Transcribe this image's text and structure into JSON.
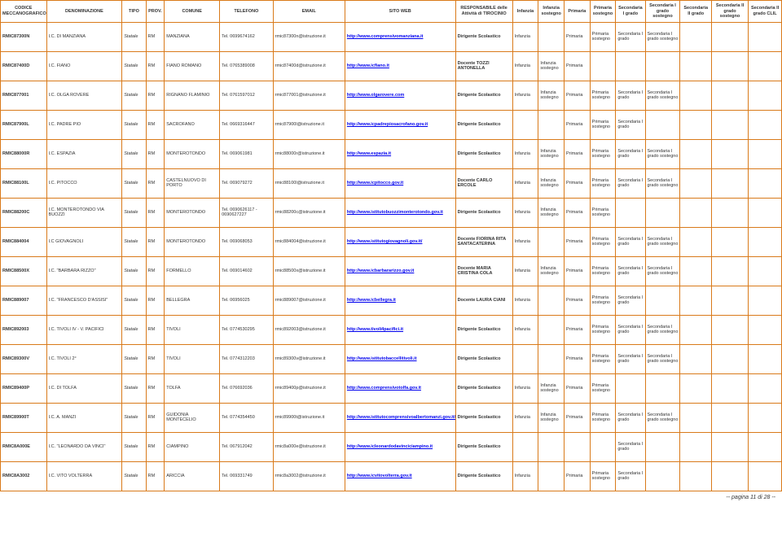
{
  "columns": [
    "CODICE MECCANOGRAFICO",
    "DENOMINAZIONE",
    "TIPO",
    "PROV.",
    "COMUNE",
    "TELEFONO",
    "EMAIL",
    "SITO WEB",
    "RESPONSABILE delle Attività di TIROCINIO",
    "Infanzia",
    "Infanzia sostegno",
    "Primaria",
    "Primaria sostegno",
    "Secondaria I grado",
    "Secondaria I grado sostegno",
    "Secondaria II grado",
    "Secondaria II grado sostegno",
    "Secondaria II grado CLIL"
  ],
  "rows": [
    {
      "code": "RMIC87300N",
      "den": "I.C. DI MANZIANA",
      "tipo": "Statale",
      "prov": "RM",
      "comune": "MANZIANA",
      "tel": "Tel. 0699674162",
      "email": "rmic87300n@istruzione.it",
      "url": "http://www.comprensivomanziana.it",
      "resp": "Dirigente Scolastico",
      "inf": "Infanzia",
      "infs": "",
      "pri": "Primaria",
      "pris": "Primaria sostegno",
      "s1": "Secondaria I grado",
      "s1s": "Secondaria I grado sostegno",
      "s2": "",
      "s2s": "",
      "clil": ""
    },
    {
      "code": "RMIC87400D",
      "den": "I.C. FIANO",
      "tipo": "Statale",
      "prov": "RM",
      "comune": "FIANO ROMANO",
      "tel": "Tel. 0765389008",
      "email": "rmic87400d@istruzione.it",
      "url": "http://www.icfiano.it",
      "resp": "Docente TOZZI ANTONELLA",
      "inf": "Infanzia",
      "infs": "Infanzia sostegno",
      "pri": "Primaria",
      "pris": "",
      "s1": "",
      "s1s": "",
      "s2": "",
      "s2s": "",
      "clil": ""
    },
    {
      "code": "RMIC877001",
      "den": "I.C. OLGA ROVERE",
      "tipo": "Statale",
      "prov": "RM",
      "comune": "RIGNANO FLAMINIO",
      "tel": "Tel. 0761597012",
      "email": "rmic877001@istruzione.it",
      "url": "http://www.olgarovere.com",
      "resp": "Dirigente Scolastico",
      "inf": "Infanzia",
      "infs": "Infanzia sostegno",
      "pri": "Primaria",
      "pris": "Primaria sostegno",
      "s1": "Secondaria I grado",
      "s1s": "Secondaria I grado sostegno",
      "s2": "",
      "s2s": "",
      "clil": ""
    },
    {
      "code": "RMIC87900L",
      "den": "I.C. PADRE PIO",
      "tipo": "Statale",
      "prov": "RM",
      "comune": "SACROFANO",
      "tel": "Tel. 0669316447",
      "email": "rmic87900l@istruzione.it",
      "url": "http://www.icpadrepiosacrofano.gov.it",
      "resp": "Dirigente Scolastico",
      "inf": "",
      "infs": "",
      "pri": "Primaria",
      "pris": "Primaria sostegno",
      "s1": "Secondaria I grado",
      "s1s": "",
      "s2": "",
      "s2s": "",
      "clil": ""
    },
    {
      "code": "RMIC88000R",
      "den": "I.C. ESPAZIA",
      "tipo": "Statale",
      "prov": "RM",
      "comune": "MONTEROTONDO",
      "tel": "Tel. 069061981",
      "email": "rmic88000r@istruzione.it",
      "url": "http://www.espazia.it",
      "resp": "Dirigente Scolastico",
      "inf": "Infanzia",
      "infs": "Infanzia sostegno",
      "pri": "Primaria",
      "pris": "Primaria sostegno",
      "s1": "Secondaria I grado",
      "s1s": "Secondaria I grado sostegno",
      "s2": "",
      "s2s": "",
      "clil": ""
    },
    {
      "code": "RMIC88100L",
      "den": "I.C. PITOCCO",
      "tipo": "Statale",
      "prov": "RM",
      "comune": "CASTELNUOVO DI PORTO",
      "tel": "Tel. 069079272",
      "email": "rmic88100l@istruzione.it",
      "url": "http://www.icpitocco.gov.it",
      "resp": "Docente CARLO ERCOLE",
      "inf": "Infanzia",
      "infs": "Infanzia sostegno",
      "pri": "Primaria",
      "pris": "Primaria sostegno",
      "s1": "Secondaria I grado",
      "s1s": "Secondaria I grado sostegno",
      "s2": "",
      "s2s": "",
      "clil": ""
    },
    {
      "code": "RMIC88200C",
      "den": "I.C. MONTEROTONDO VIA BUOZZI",
      "tipo": "Statale",
      "prov": "RM",
      "comune": "MONTEROTONDO",
      "tel": "Tel. 0690626117 - 0690627227",
      "email": "rmic88200c@istruzione.it",
      "url": "http://www.istitutobuozzimonterotondo.gov.it",
      "resp": "Dirigente Scolastico",
      "inf": "Infanzia",
      "infs": "Infanzia sostegno",
      "pri": "Primaria",
      "pris": "Primaria sostegno",
      "s1": "",
      "s1s": "",
      "s2": "",
      "s2s": "",
      "clil": ""
    },
    {
      "code": "RMIC884004",
      "den": "I.C GIOVAGNOLI",
      "tipo": "Statale",
      "prov": "RM",
      "comune": "MONTEROTONDO",
      "tel": "Tel. 069068053",
      "email": "rmic884004@istruzione.it",
      "url": "http://www.istitutogiovagnoli.gov.it/",
      "resp": "Docente FIORINA RITA SANTACATERINA",
      "inf": "Infanzia",
      "infs": "",
      "pri": "Primaria",
      "pris": "Primaria sostegno",
      "s1": "Secondaria I grado",
      "s1s": "Secondaria I grado sostegno",
      "s2": "",
      "s2s": "",
      "clil": ""
    },
    {
      "code": "RMIC88500X",
      "den": "I.C. \"BARBARA RIZZO\"",
      "tipo": "Statale",
      "prov": "RM",
      "comune": "FORMELLO",
      "tel": "Tel. 069014602",
      "email": "rmic88500x@istruzione.it",
      "url": "http://www.icbarbararizzo.gov.it",
      "resp": "Docente MARIA CRISTINA COLA",
      "inf": "Infanzia",
      "infs": "Infanzia sostegno",
      "pri": "Primaria",
      "pris": "Primaria sostegno",
      "s1": "Secondaria I grado",
      "s1s": "Secondaria I grado sostegno",
      "s2": "",
      "s2s": "",
      "clil": ""
    },
    {
      "code": "RMIC889007",
      "den": "I.C. \"FRANCESCO D'ASSISI\"",
      "tipo": "Statale",
      "prov": "RM",
      "comune": "BELLEGRA",
      "tel": "Tel. 06956025",
      "email": "rmic889007@istruzione.it",
      "url": "http://www.icbellegra.it",
      "resp": "Docente LAURA CIANI",
      "inf": "Infanzia",
      "infs": "",
      "pri": "Primaria",
      "pris": "Primaria sostegno",
      "s1": "Secondaria I grado",
      "s1s": "",
      "s2": "",
      "s2s": "",
      "clil": ""
    },
    {
      "code": "RMIC892003",
      "den": "I.C. TIVOLI IV - V. PACIFICI",
      "tipo": "Statale",
      "prov": "RM",
      "comune": "TIVOLI",
      "tel": "Tel. 0774530295",
      "email": "rmic892003@istruzione.it",
      "url": "http://www.tivoli4pacifici.it",
      "resp": "Dirigente Scolastico",
      "inf": "Infanzia",
      "infs": "",
      "pri": "Primaria",
      "pris": "Primaria sostegno",
      "s1": "Secondaria I grado",
      "s1s": "Secondaria I grado sostegno",
      "s2": "",
      "s2s": "",
      "clil": ""
    },
    {
      "code": "RMIC89300V",
      "den": "I.C. TIVOLI 2°",
      "tipo": "Statale",
      "prov": "RM",
      "comune": "TIVOLI",
      "tel": "Tel. 0774312203",
      "email": "rmic89300v@istruzione.it",
      "url": "http://www.istitutobaccellitivoli.it",
      "resp": "Dirigente Scolastico",
      "inf": "",
      "infs": "",
      "pri": "Primaria",
      "pris": "Primaria sostegno",
      "s1": "Secondaria I grado",
      "s1s": "Secondaria I grado sostegno",
      "s2": "",
      "s2s": "",
      "clil": ""
    },
    {
      "code": "RMIC89400P",
      "den": "I.C. DI TOLFA",
      "tipo": "Statale",
      "prov": "RM",
      "comune": "TOLFA",
      "tel": "Tel. 076692036",
      "email": "rmic89400p@istruzione.it",
      "url": "http://www.comprensivotolfa.gov.it",
      "resp": "Dirigente Scolastico",
      "inf": "Infanzia",
      "infs": "Infanzia sostegno",
      "pri": "Primaria",
      "pris": "Primaria sostegno",
      "s1": "",
      "s1s": "",
      "s2": "",
      "s2s": "",
      "clil": ""
    },
    {
      "code": "RMIC89900T",
      "den": "I.C. A. MANZI",
      "tipo": "Statale",
      "prov": "RM",
      "comune": "GUIDONIA MONTECELIO",
      "tel": "Tel. 0774354450",
      "email": "rmic89900t@istruzione.it",
      "url": "http://www.istitutocomprensivoalbertomanzi.gov.it/",
      "resp": "Dirigente Scolastico",
      "inf": "Infanzia",
      "infs": "Infanzia sostegno",
      "pri": "Primaria",
      "pris": "Primaria sostegno",
      "s1": "Secondaria I grado",
      "s1s": "Secondaria I grado sostegno",
      "s2": "",
      "s2s": "",
      "clil": ""
    },
    {
      "code": "RMIC8A000E",
      "den": "I.C. \"LEONARDO DA VINCI\"",
      "tipo": "Statale",
      "prov": "RM",
      "comune": "CIAMPINO",
      "tel": "Tel. 067912042",
      "email": "rmic8a000e@istruzione.it",
      "url": "http://www.icleonardodavinciciampino.it",
      "resp": "Dirigente Scolastico",
      "inf": "",
      "infs": "",
      "pri": "",
      "pris": "",
      "s1": "Secondaria I grado",
      "s1s": "",
      "s2": "",
      "s2s": "",
      "clil": ""
    },
    {
      "code": "RMIC8A3002",
      "den": "I.C. VITO VOLTERRA",
      "tipo": "Statale",
      "prov": "RM",
      "comune": "ARICCIA",
      "tel": "Tel. 069331749",
      "email": "rmic8a3002@istruzione.it",
      "url": "http://www.icvitovolterra.gov.it",
      "resp": "Dirigente Scolastico",
      "inf": "Infanzia",
      "infs": "",
      "pri": "Primaria",
      "pris": "Primaria sostegno",
      "s1": "Secondaria I grado",
      "s1s": "",
      "s2": "",
      "s2s": "",
      "clil": ""
    }
  ],
  "footer": "-- pagina 11 di 28 --",
  "colors": {
    "border": "#d97a1a",
    "link": "#0000ee"
  }
}
